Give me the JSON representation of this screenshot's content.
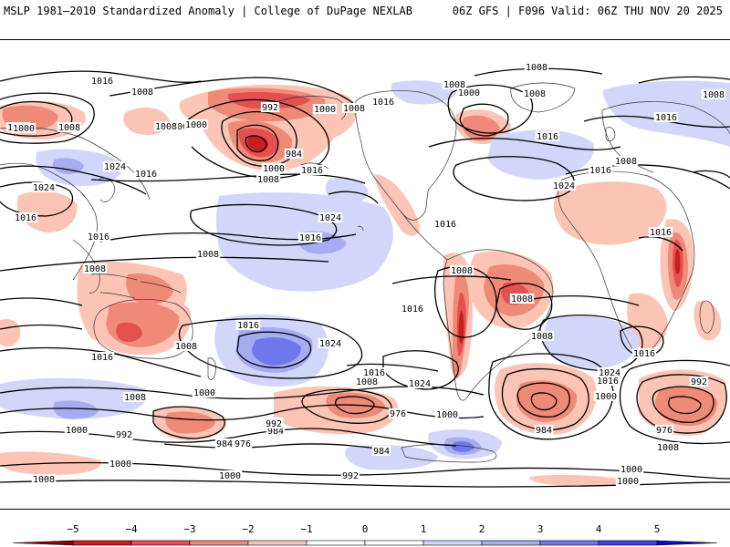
{
  "header": {
    "left_title": "MSLP 1981–2010 Standardized Anomaly | College of DuPage NEXLAB",
    "right_title": "06Z GFS | F096 Valid: 06Z THU NOV 20 2025"
  },
  "colors": {
    "neg5": "#8b0000",
    "neg4": "#c81e1e",
    "neg3": "#e45050",
    "neg2": "#f08a78",
    "neg1": "#fbc4b4",
    "zero": "#ffffff",
    "pos1": "#d2d6fa",
    "pos2": "#a6acf2",
    "pos3": "#6e78ea",
    "pos4": "#3c44dc",
    "pos5": "#0a0ac8",
    "coast": "#333333",
    "isobar": "#000000"
  },
  "colorbar": {
    "ticks": [
      "−5",
      "−4",
      "−3",
      "−2",
      "−1",
      "0",
      "1",
      "2",
      "3",
      "4",
      "5"
    ]
  },
  "isobar_labels": [
    {
      "id": "l1",
      "text": "1016"
    },
    {
      "id": "l2",
      "text": "1008"
    },
    {
      "id": "l3",
      "text": "1000"
    },
    {
      "id": "l4",
      "text": "1008"
    },
    {
      "id": "l5",
      "text": "1008"
    },
    {
      "id": "l6",
      "text": "1000"
    },
    {
      "id": "l7",
      "text": "992"
    },
    {
      "id": "l8",
      "text": "984"
    },
    {
      "id": "l9",
      "text": "1000"
    },
    {
      "id": "l10",
      "text": "1016"
    },
    {
      "id": "l11",
      "text": "1008"
    },
    {
      "id": "l12",
      "text": "1000"
    },
    {
      "id": "l13",
      "text": "1008"
    },
    {
      "id": "l14",
      "text": "1016"
    },
    {
      "id": "l15",
      "text": "1008"
    },
    {
      "id": "l16",
      "text": "1000"
    },
    {
      "id": "l17",
      "text": "1008"
    },
    {
      "id": "l18",
      "text": "1008"
    },
    {
      "id": "l19",
      "text": "1016"
    },
    {
      "id": "l20",
      "text": "1024"
    },
    {
      "id": "l21",
      "text": "1016"
    },
    {
      "id": "l22",
      "text": "1024"
    },
    {
      "id": "l23",
      "text": "1016"
    },
    {
      "id": "l24",
      "text": "1016"
    },
    {
      "id": "l25",
      "text": "1008"
    },
    {
      "id": "l26",
      "text": "1016"
    },
    {
      "id": "l27",
      "text": "1008"
    },
    {
      "id": "l28",
      "text": "1024"
    },
    {
      "id": "l29",
      "text": "1008"
    },
    {
      "id": "l30",
      "text": "1024"
    },
    {
      "id": "l31",
      "text": "1016"
    },
    {
      "id": "l32",
      "text": "1016"
    },
    {
      "id": "l33",
      "text": "1016"
    },
    {
      "id": "l34",
      "text": "1008"
    },
    {
      "id": "l35",
      "text": "1016"
    },
    {
      "id": "l36",
      "text": "1008"
    },
    {
      "id": "l37",
      "text": "1016"
    },
    {
      "id": "l38",
      "text": "1016"
    },
    {
      "id": "l39",
      "text": "1024"
    },
    {
      "id": "l40",
      "text": "1016"
    },
    {
      "id": "l41",
      "text": "1008"
    },
    {
      "id": "l42",
      "text": "1008"
    },
    {
      "id": "l43",
      "text": "1016"
    },
    {
      "id": "l44",
      "text": "1024"
    },
    {
      "id": "l45",
      "text": "1008"
    },
    {
      "id": "l46",
      "text": "1024"
    },
    {
      "id": "l47",
      "text": "1016"
    },
    {
      "id": "l48",
      "text": "1000"
    },
    {
      "id": "l49",
      "text": "992"
    },
    {
      "id": "l50",
      "text": "1016"
    },
    {
      "id": "l51",
      "text": "1008"
    },
    {
      "id": "l52",
      "text": "1000"
    },
    {
      "id": "l53",
      "text": "992"
    },
    {
      "id": "l54",
      "text": "984"
    },
    {
      "id": "l55",
      "text": "976"
    },
    {
      "id": "l56",
      "text": "1000"
    },
    {
      "id": "l57",
      "text": "1008"
    },
    {
      "id": "l58",
      "text": "992"
    },
    {
      "id": "l59",
      "text": "984"
    },
    {
      "id": "l60",
      "text": "976"
    },
    {
      "id": "l61",
      "text": "1000"
    },
    {
      "id": "l62",
      "text": "992"
    },
    {
      "id": "l63",
      "text": "984"
    },
    {
      "id": "l64",
      "text": "1000"
    },
    {
      "id": "l65",
      "text": "984"
    },
    {
      "id": "l66",
      "text": "976"
    },
    {
      "id": "l67",
      "text": "1008"
    },
    {
      "id": "l68",
      "text": "1000"
    },
    {
      "id": "l69",
      "text": "992"
    },
    {
      "id": "l70",
      "text": "1000"
    },
    {
      "id": "l71",
      "text": "1008"
    },
    {
      "id": "l72",
      "text": "1000"
    },
    {
      "id": "l73",
      "text": "1000"
    },
    {
      "id": "l74",
      "text": "1008"
    }
  ]
}
